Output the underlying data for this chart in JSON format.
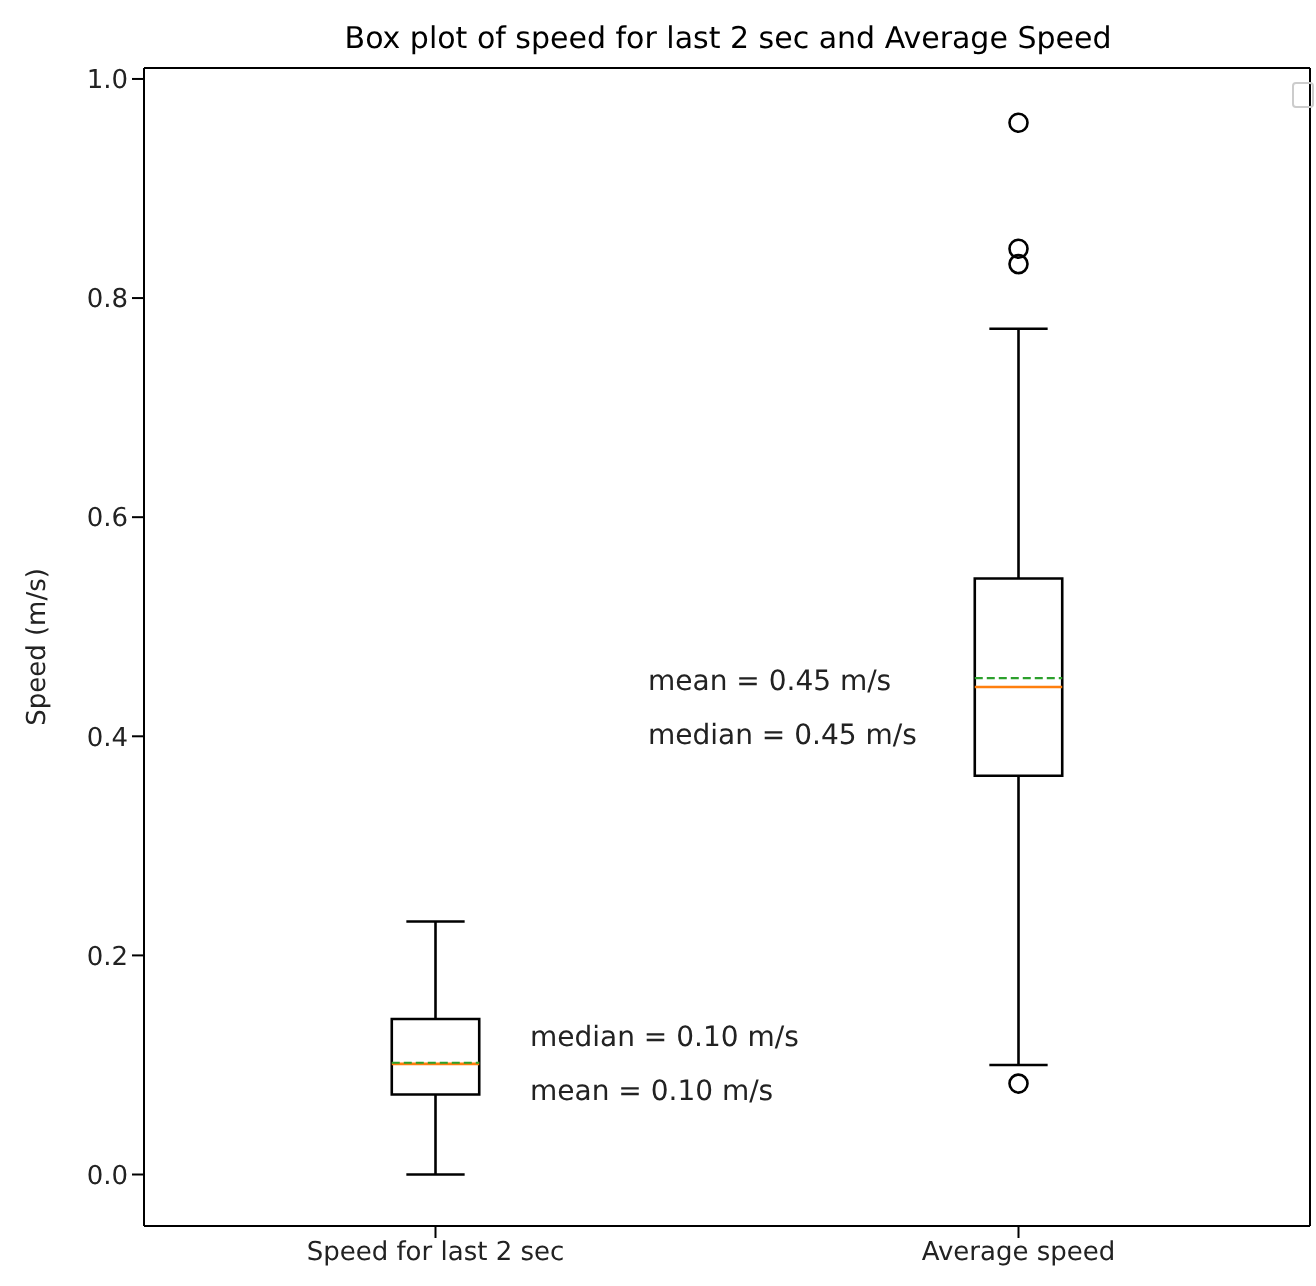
{
  "chart_data": {
    "type": "box",
    "title": "Box plot of speed for last 2 sec and Average Speed",
    "ylabel": "Speed (m/s)",
    "categories": [
      "Speed for last 2 sec",
      "Average speed"
    ],
    "boxes": [
      {
        "low": 0.0,
        "q1": 0.073,
        "median": 0.101,
        "q3": 0.142,
        "high": 0.231,
        "mean": 0.102
      },
      {
        "low": 0.1,
        "q1": 0.364,
        "median": 0.445,
        "q3": 0.544,
        "high": 0.772,
        "mean": 0.453,
        "outliers": [
          0.96,
          0.845,
          0.831,
          0.083
        ]
      }
    ],
    "ylim": [
      -0.047,
      1.01
    ],
    "yticks": [
      {
        "value": 0,
        "label": "0.0"
      },
      0.2,
      0.4,
      0.6,
      0.8,
      {
        "value": 1,
        "label": "1.0"
      }
    ],
    "annotations": [
      "median = 0.10 m/s",
      "mean = 0.10 m/s",
      "mean = 0.45 m/s",
      "median = 0.45 m/s"
    ],
    "grid": false
  }
}
